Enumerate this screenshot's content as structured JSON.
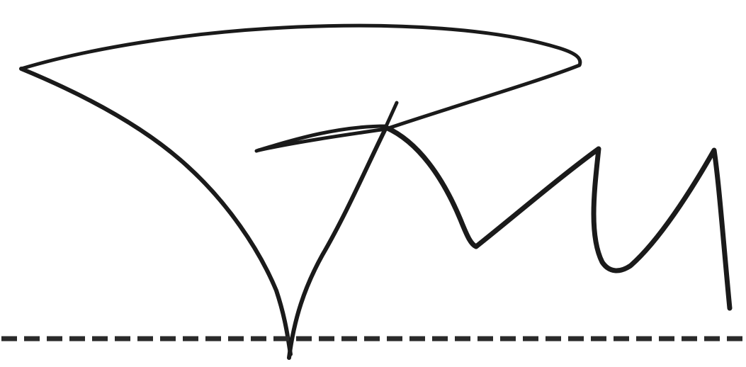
{
  "image": {
    "kind": "handwritten-signature",
    "ink_color": "#1a1a1a",
    "background_color": "#ffffff",
    "baseline_style": "dashed",
    "baseline_color": "#2a2a2a"
  }
}
